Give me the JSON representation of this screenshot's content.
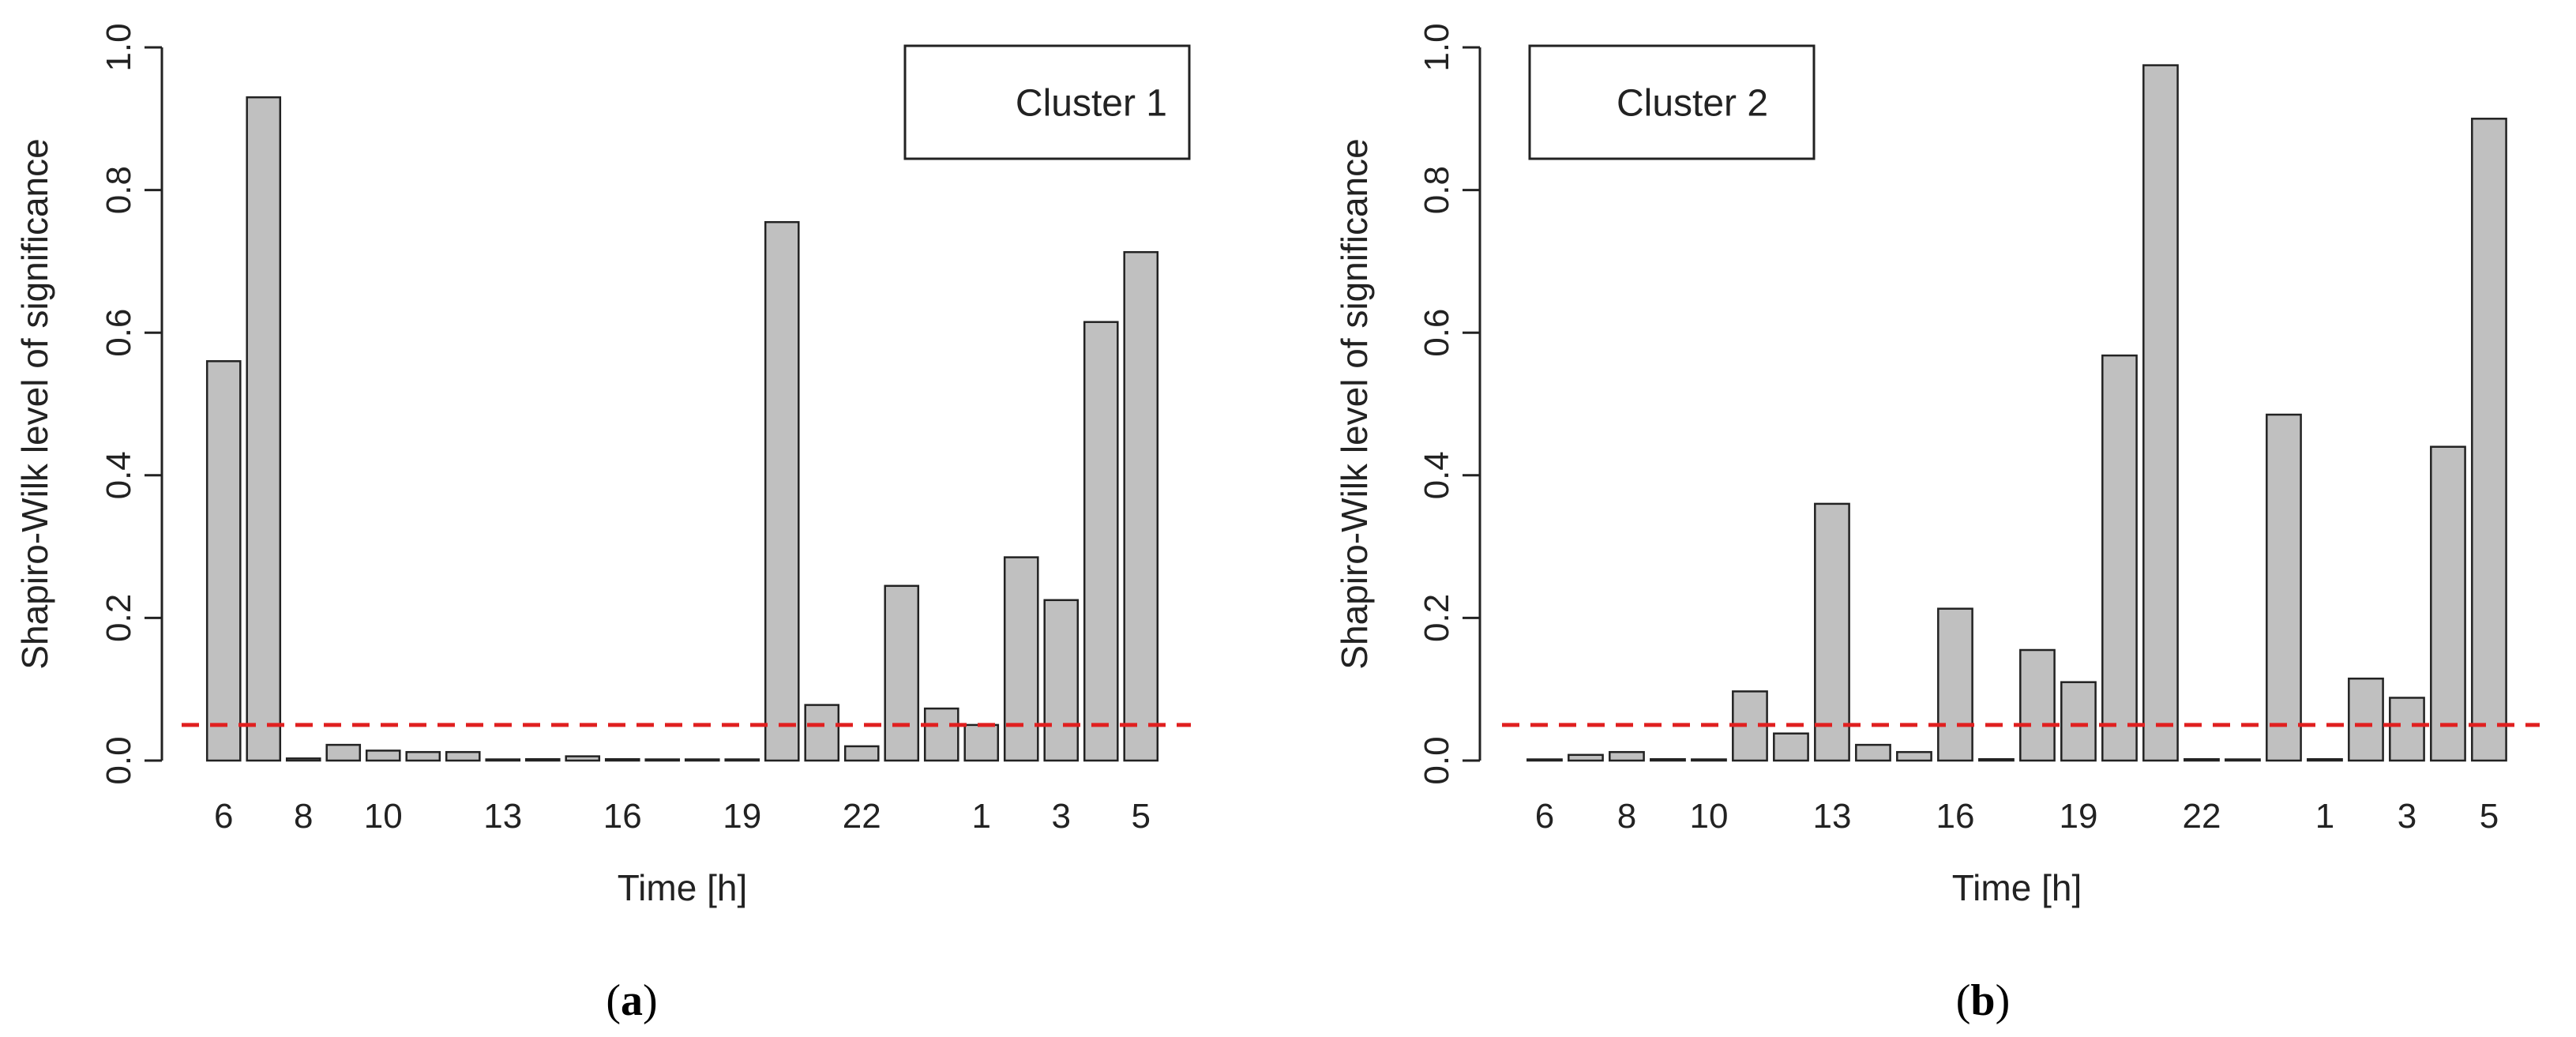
{
  "chart_data": [
    {
      "type": "bar",
      "panel": "(a)",
      "caption_letter": "a",
      "legend": "Cluster 1",
      "legend_position": "top-right",
      "xlabel": "Time [h]",
      "ylabel": "Shapiro-Wilk level of significance",
      "ylim": [
        0,
        1.0
      ],
      "yticks": [
        "0.0",
        "0.2",
        "0.4",
        "0.6",
        "0.8",
        "1.0"
      ],
      "categories": [
        6,
        7,
        8,
        9,
        10,
        11,
        12,
        13,
        14,
        15,
        16,
        17,
        18,
        19,
        20,
        21,
        22,
        23,
        0,
        1,
        2,
        3,
        4,
        5
      ],
      "xtick_labels": [
        "6",
        "8",
        "10",
        "13",
        "16",
        "19",
        "22",
        "1",
        "3",
        "5"
      ],
      "values": [
        0.56,
        0.93,
        0.003,
        0.022,
        0.014,
        0.012,
        0.012,
        0.0,
        0.002,
        0.006,
        0.002,
        0.001,
        0.001,
        0.0,
        0.755,
        0.078,
        0.02,
        0.245,
        0.073,
        0.05,
        0.285,
        0.225,
        0.615,
        0.713
      ],
      "reference_line": {
        "value": 0.05,
        "color": "#e02020",
        "style": "dashed"
      },
      "bar_color": "#c0c0c0"
    },
    {
      "type": "bar",
      "panel": "(b)",
      "caption_letter": "b",
      "legend": "Cluster 2",
      "legend_position": "top-left",
      "xlabel": "Time [h]",
      "ylabel": "Shapiro-Wilk level of significance",
      "ylim": [
        0,
        1.0
      ],
      "yticks": [
        "0.0",
        "0.2",
        "0.4",
        "0.6",
        "0.8",
        "1.0"
      ],
      "categories": [
        6,
        7,
        8,
        9,
        10,
        11,
        12,
        13,
        14,
        15,
        16,
        17,
        18,
        19,
        20,
        21,
        22,
        23,
        0,
        1,
        2,
        3,
        4,
        5
      ],
      "xtick_labels": [
        "6",
        "8",
        "10",
        "13",
        "16",
        "19",
        "22",
        "1",
        "3",
        "5"
      ],
      "values": [
        0.001,
        0.008,
        0.012,
        0.002,
        0.0,
        0.097,
        0.038,
        0.36,
        0.022,
        0.012,
        0.213,
        0.002,
        0.155,
        0.11,
        0.568,
        0.975,
        0.002,
        0.0,
        0.485,
        0.002,
        0.115,
        0.088,
        0.44,
        0.9
      ],
      "reference_line": {
        "value": 0.05,
        "color": "#e02020",
        "style": "dashed"
      },
      "bar_color": "#c0c0c0"
    }
  ]
}
